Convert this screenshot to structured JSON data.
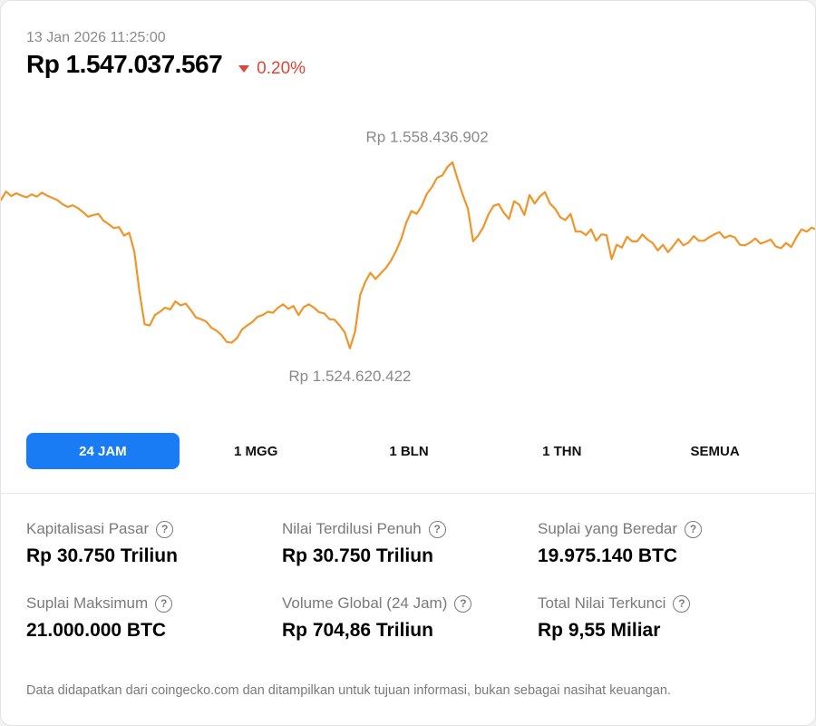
{
  "header": {
    "timestamp": "13 Jan 2026 11:25:00",
    "price": "Rp 1.547.037.567",
    "change": "0.20%",
    "change_direction": "down",
    "change_color": "#e0453a"
  },
  "chart_data": {
    "type": "line",
    "title": "",
    "xlabel": "",
    "ylabel": "",
    "line_color": "#f0952a",
    "ylim": [
      1520000000,
      1566000000
    ],
    "grid": false,
    "annotations": {
      "high": {
        "label": "Rp 1.558.436.902",
        "value": 1558436902
      },
      "low": {
        "label": "Rp 1.524.620.422",
        "value": 1524620422
      }
    },
    "series": [
      {
        "values": [
          1551800000,
          1553300000,
          1552500000,
          1553000000,
          1552600000,
          1552300000,
          1552800000,
          1552400000,
          1553100000,
          1552600000,
          1552200000,
          1551800000,
          1551100000,
          1550600000,
          1550900000,
          1550400000,
          1549700000,
          1548900000,
          1549200000,
          1549400000,
          1548200000,
          1547600000,
          1546900000,
          1547100000,
          1545600000,
          1546100000,
          1542800000,
          1535800000,
          1530100000,
          1529900000,
          1531700000,
          1532300000,
          1533000000,
          1532700000,
          1534100000,
          1533400000,
          1533700000,
          1532600000,
          1531300000,
          1531000000,
          1530600000,
          1529500000,
          1529000000,
          1528200000,
          1527000000,
          1526900000,
          1527700000,
          1529200000,
          1529900000,
          1530500000,
          1531400000,
          1531700000,
          1532300000,
          1532100000,
          1533000000,
          1533600000,
          1532800000,
          1533300000,
          1531700000,
          1533100000,
          1533600000,
          1533000000,
          1532200000,
          1532000000,
          1531000000,
          1530900000,
          1529900000,
          1528700000,
          1525900000,
          1528800000,
          1535200000,
          1537500000,
          1539100000,
          1538000000,
          1539000000,
          1539900000,
          1541200000,
          1542900000,
          1545000000,
          1547900000,
          1549900000,
          1549400000,
          1550800000,
          1552900000,
          1554100000,
          1555700000,
          1556100000,
          1557600000,
          1558400000,
          1555400000,
          1552700000,
          1550300000,
          1544600000,
          1545600000,
          1547100000,
          1549300000,
          1550800000,
          1551100000,
          1549600000,
          1548500000,
          1551600000,
          1551000000,
          1549200000,
          1552700000,
          1551200000,
          1552400000,
          1553200000,
          1551200000,
          1550300000,
          1548800000,
          1548300000,
          1549400000,
          1546300000,
          1546300000,
          1545700000,
          1546700000,
          1544700000,
          1545800000,
          1545700000,
          1541500000,
          1544000000,
          1543500000,
          1545400000,
          1544600000,
          1544600000,
          1545800000,
          1544900000,
          1544300000,
          1543000000,
          1544000000,
          1542700000,
          1543800000,
          1545000000,
          1543900000,
          1544400000,
          1545500000,
          1544700000,
          1544700000,
          1545300000,
          1545800000,
          1546200000,
          1545200000,
          1545600000,
          1545300000,
          1544000000,
          1543900000,
          1544400000,
          1545100000,
          1544200000,
          1544500000,
          1544900000,
          1543700000,
          1543400000,
          1544300000,
          1543600000,
          1545300000,
          1546700000,
          1546300000,
          1547000000,
          1546600000
        ]
      }
    ]
  },
  "ranges": {
    "items": [
      "24 JAM",
      "1 MGG",
      "1 BLN",
      "1 THN",
      "SEMUA"
    ],
    "active_index": 0,
    "active_color": "#1a7cf5"
  },
  "stats": [
    {
      "label": "Kapitalisasi Pasar",
      "value": "Rp 30.750 Triliun"
    },
    {
      "label": "Nilai Terdilusi Penuh",
      "value": "Rp 30.750 Triliun"
    },
    {
      "label": "Suplai yang Beredar",
      "value": "19.975.140 BTC"
    },
    {
      "label": "Suplai Maksimum",
      "value": "21.000.000 BTC"
    },
    {
      "label": "Volume Global (24 Jam)",
      "value": "Rp 704,86 Triliun"
    },
    {
      "label": "Total Nilai Terkunci",
      "value": "Rp 9,55 Miliar"
    }
  ],
  "help_glyph": "?",
  "footnote": "Data didapatkan dari coingecko.com dan ditampilkan untuk tujuan informasi, bukan sebagai nasihat keuangan."
}
